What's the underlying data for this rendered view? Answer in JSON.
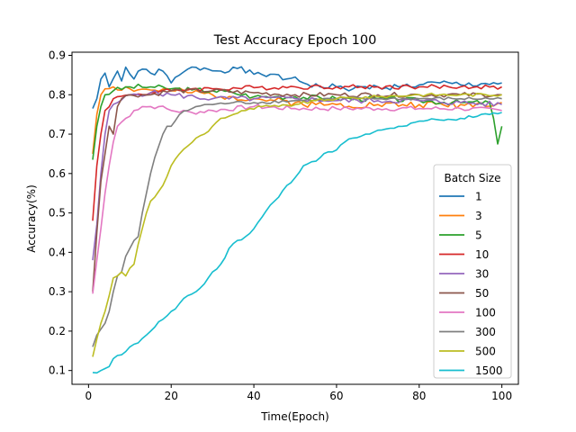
{
  "chart_data": {
    "type": "line",
    "title": "Test Accuracy Epoch 100",
    "xlabel": "Time(Epoch)",
    "ylabel": "Accuracy(%)",
    "xlim": [
      -4,
      104
    ],
    "ylim": [
      0.065,
      0.908
    ],
    "xticks": [
      0,
      20,
      40,
      60,
      80,
      100
    ],
    "yticks": [
      0.1,
      0.2,
      0.3,
      0.4,
      0.5,
      0.6,
      0.7,
      0.8,
      0.9
    ],
    "grid": false,
    "legend": {
      "title": "Batch Size",
      "placement": "lower-right"
    },
    "series": [
      {
        "name": "1",
        "color": "#1f77b4",
        "keypoints": [
          [
            1,
            0.765
          ],
          [
            2,
            0.79
          ],
          [
            3,
            0.84
          ],
          [
            4,
            0.855
          ],
          [
            5,
            0.82
          ],
          [
            7,
            0.86
          ],
          [
            8,
            0.835
          ],
          [
            9,
            0.87
          ],
          [
            11,
            0.84
          ],
          [
            13,
            0.865
          ],
          [
            15,
            0.855
          ],
          [
            18,
            0.86
          ],
          [
            20,
            0.83
          ],
          [
            22,
            0.85
          ],
          [
            24,
            0.865
          ],
          [
            28,
            0.868
          ],
          [
            32,
            0.86
          ],
          [
            35,
            0.87
          ],
          [
            40,
            0.852
          ],
          [
            44,
            0.852
          ],
          [
            47,
            0.838
          ],
          [
            50,
            0.845
          ],
          [
            52,
            0.83
          ],
          [
            56,
            0.82
          ],
          [
            60,
            0.82
          ],
          [
            64,
            0.815
          ],
          [
            70,
            0.82
          ],
          [
            75,
            0.82
          ],
          [
            80,
            0.825
          ],
          [
            85,
            0.83
          ],
          [
            90,
            0.825
          ],
          [
            95,
            0.828
          ],
          [
            100,
            0.83
          ]
        ],
        "seed": 1,
        "noise": 0.008
      },
      {
        "name": "3",
        "color": "#ff7f0e",
        "keypoints": [
          [
            1,
            0.65
          ],
          [
            2,
            0.75
          ],
          [
            3,
            0.8
          ],
          [
            4,
            0.815
          ],
          [
            6,
            0.82
          ],
          [
            10,
            0.815
          ],
          [
            15,
            0.812
          ],
          [
            20,
            0.81
          ],
          [
            25,
            0.805
          ],
          [
            30,
            0.8
          ],
          [
            35,
            0.795
          ],
          [
            40,
            0.79
          ],
          [
            45,
            0.785
          ],
          [
            50,
            0.78
          ],
          [
            55,
            0.775
          ],
          [
            60,
            0.775
          ],
          [
            70,
            0.775
          ],
          [
            80,
            0.775
          ],
          [
            90,
            0.775
          ],
          [
            100,
            0.78
          ]
        ],
        "seed": 2,
        "noise": 0.009
      },
      {
        "name": "5",
        "color": "#2ca02c",
        "keypoints": [
          [
            1,
            0.635
          ],
          [
            2,
            0.72
          ],
          [
            3,
            0.77
          ],
          [
            4,
            0.8
          ],
          [
            6,
            0.81
          ],
          [
            10,
            0.82
          ],
          [
            15,
            0.82
          ],
          [
            20,
            0.815
          ],
          [
            25,
            0.812
          ],
          [
            30,
            0.81
          ],
          [
            35,
            0.805
          ],
          [
            40,
            0.795
          ],
          [
            45,
            0.795
          ],
          [
            50,
            0.795
          ],
          [
            60,
            0.79
          ],
          [
            70,
            0.79
          ],
          [
            80,
            0.785
          ],
          [
            90,
            0.78
          ],
          [
            97,
            0.78
          ],
          [
            98,
            0.74
          ],
          [
            99,
            0.675
          ],
          [
            100,
            0.72
          ]
        ],
        "seed": 3,
        "noise": 0.007
      },
      {
        "name": "10",
        "color": "#d62728",
        "keypoints": [
          [
            1,
            0.48
          ],
          [
            2,
            0.62
          ],
          [
            3,
            0.7
          ],
          [
            4,
            0.76
          ],
          [
            6,
            0.79
          ],
          [
            10,
            0.8
          ],
          [
            15,
            0.805
          ],
          [
            20,
            0.81
          ],
          [
            25,
            0.815
          ],
          [
            30,
            0.815
          ],
          [
            40,
            0.818
          ],
          [
            50,
            0.82
          ],
          [
            60,
            0.82
          ],
          [
            70,
            0.82
          ],
          [
            80,
            0.82
          ],
          [
            90,
            0.82
          ],
          [
            100,
            0.82
          ]
        ],
        "seed": 4,
        "noise": 0.006
      },
      {
        "name": "30",
        "color": "#9467bd",
        "keypoints": [
          [
            1,
            0.38
          ],
          [
            2,
            0.47
          ],
          [
            3,
            0.6
          ],
          [
            4,
            0.7
          ],
          [
            5,
            0.76
          ],
          [
            7,
            0.78
          ],
          [
            10,
            0.8
          ],
          [
            15,
            0.805
          ],
          [
            20,
            0.8
          ],
          [
            30,
            0.79
          ],
          [
            40,
            0.79
          ],
          [
            50,
            0.79
          ],
          [
            60,
            0.785
          ],
          [
            70,
            0.785
          ],
          [
            80,
            0.785
          ],
          [
            90,
            0.78
          ],
          [
            100,
            0.775
          ]
        ],
        "seed": 5,
        "noise": 0.007
      },
      {
        "name": "50",
        "color": "#8c564b",
        "keypoints": [
          [
            1,
            0.3
          ],
          [
            2,
            0.45
          ],
          [
            3,
            0.58
          ],
          [
            4,
            0.65
          ],
          [
            5,
            0.72
          ],
          [
            6,
            0.7
          ],
          [
            7,
            0.77
          ],
          [
            8,
            0.79
          ],
          [
            10,
            0.8
          ],
          [
            15,
            0.8
          ],
          [
            20,
            0.81
          ],
          [
            30,
            0.81
          ],
          [
            40,
            0.805
          ],
          [
            50,
            0.8
          ],
          [
            60,
            0.8
          ],
          [
            70,
            0.8
          ],
          [
            80,
            0.8
          ],
          [
            90,
            0.8
          ],
          [
            100,
            0.8
          ]
        ],
        "seed": 6,
        "noise": 0.006
      },
      {
        "name": "100",
        "color": "#e377c2",
        "keypoints": [
          [
            1,
            0.295
          ],
          [
            2,
            0.38
          ],
          [
            3,
            0.46
          ],
          [
            4,
            0.55
          ],
          [
            5,
            0.62
          ],
          [
            6,
            0.68
          ],
          [
            7,
            0.72
          ],
          [
            9,
            0.74
          ],
          [
            11,
            0.76
          ],
          [
            13,
            0.77
          ],
          [
            17,
            0.77
          ],
          [
            20,
            0.76
          ],
          [
            25,
            0.755
          ],
          [
            30,
            0.76
          ],
          [
            40,
            0.77
          ],
          [
            50,
            0.765
          ],
          [
            60,
            0.765
          ],
          [
            70,
            0.765
          ],
          [
            80,
            0.765
          ],
          [
            90,
            0.765
          ],
          [
            100,
            0.76
          ]
        ],
        "seed": 7,
        "noise": 0.006
      },
      {
        "name": "300",
        "color": "#7f7f7f",
        "keypoints": [
          [
            1,
            0.16
          ],
          [
            2,
            0.19
          ],
          [
            3,
            0.205
          ],
          [
            4,
            0.22
          ],
          [
            5,
            0.25
          ],
          [
            6,
            0.3
          ],
          [
            7,
            0.34
          ],
          [
            8,
            0.35
          ],
          [
            9,
            0.39
          ],
          [
            10,
            0.41
          ],
          [
            11,
            0.43
          ],
          [
            12,
            0.44
          ],
          [
            13,
            0.5
          ],
          [
            14,
            0.55
          ],
          [
            15,
            0.6
          ],
          [
            16,
            0.64
          ],
          [
            17,
            0.67
          ],
          [
            18,
            0.7
          ],
          [
            19,
            0.72
          ],
          [
            20,
            0.72
          ],
          [
            22,
            0.75
          ],
          [
            24,
            0.76
          ],
          [
            26,
            0.77
          ],
          [
            28,
            0.775
          ],
          [
            30,
            0.775
          ],
          [
            35,
            0.78
          ],
          [
            40,
            0.78
          ],
          [
            50,
            0.785
          ],
          [
            60,
            0.79
          ],
          [
            70,
            0.79
          ],
          [
            80,
            0.79
          ],
          [
            90,
            0.79
          ],
          [
            100,
            0.79
          ]
        ],
        "seed": 8,
        "noise": 0.004
      },
      {
        "name": "500",
        "color": "#bcbd22",
        "keypoints": [
          [
            1,
            0.135
          ],
          [
            2,
            0.18
          ],
          [
            3,
            0.22
          ],
          [
            4,
            0.25
          ],
          [
            5,
            0.29
          ],
          [
            6,
            0.335
          ],
          [
            7,
            0.34
          ],
          [
            8,
            0.35
          ],
          [
            9,
            0.34
          ],
          [
            10,
            0.36
          ],
          [
            11,
            0.37
          ],
          [
            12,
            0.42
          ],
          [
            13,
            0.46
          ],
          [
            14,
            0.5
          ],
          [
            15,
            0.53
          ],
          [
            16,
            0.54
          ],
          [
            17,
            0.555
          ],
          [
            18,
            0.57
          ],
          [
            20,
            0.62
          ],
          [
            22,
            0.65
          ],
          [
            24,
            0.67
          ],
          [
            26,
            0.69
          ],
          [
            28,
            0.7
          ],
          [
            30,
            0.72
          ],
          [
            32,
            0.74
          ],
          [
            35,
            0.75
          ],
          [
            38,
            0.76
          ],
          [
            42,
            0.77
          ],
          [
            46,
            0.77
          ],
          [
            50,
            0.775
          ],
          [
            55,
            0.785
          ],
          [
            60,
            0.79
          ],
          [
            70,
            0.795
          ],
          [
            80,
            0.8
          ],
          [
            90,
            0.8
          ],
          [
            100,
            0.8
          ]
        ],
        "seed": 9,
        "noise": 0.004
      },
      {
        "name": "1500",
        "color": "#17becf",
        "keypoints": [
          [
            1,
            0.095
          ],
          [
            3,
            0.1
          ],
          [
            5,
            0.11
          ],
          [
            6,
            0.13
          ],
          [
            8,
            0.14
          ],
          [
            10,
            0.16
          ],
          [
            12,
            0.17
          ],
          [
            14,
            0.19
          ],
          [
            16,
            0.21
          ],
          [
            18,
            0.23
          ],
          [
            20,
            0.25
          ],
          [
            22,
            0.27
          ],
          [
            24,
            0.29
          ],
          [
            26,
            0.3
          ],
          [
            28,
            0.32
          ],
          [
            30,
            0.35
          ],
          [
            32,
            0.37
          ],
          [
            34,
            0.41
          ],
          [
            36,
            0.43
          ],
          [
            38,
            0.44
          ],
          [
            40,
            0.46
          ],
          [
            42,
            0.49
          ],
          [
            44,
            0.52
          ],
          [
            46,
            0.54
          ],
          [
            48,
            0.57
          ],
          [
            50,
            0.59
          ],
          [
            52,
            0.62
          ],
          [
            54,
            0.63
          ],
          [
            56,
            0.64
          ],
          [
            58,
            0.655
          ],
          [
            60,
            0.66
          ],
          [
            62,
            0.68
          ],
          [
            64,
            0.69
          ],
          [
            66,
            0.695
          ],
          [
            68,
            0.7
          ],
          [
            70,
            0.71
          ],
          [
            73,
            0.715
          ],
          [
            76,
            0.72
          ],
          [
            79,
            0.73
          ],
          [
            82,
            0.735
          ],
          [
            86,
            0.735
          ],
          [
            90,
            0.74
          ],
          [
            94,
            0.745
          ],
          [
            97,
            0.75
          ],
          [
            100,
            0.755
          ]
        ],
        "seed": 10,
        "noise": 0.004
      }
    ]
  }
}
